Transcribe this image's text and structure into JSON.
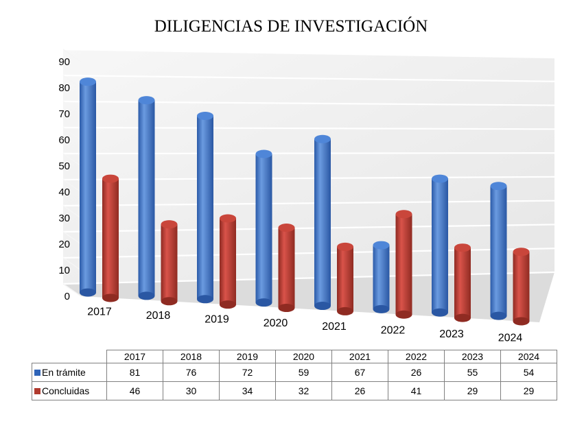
{
  "chart_data": {
    "type": "bar",
    "title": "DILIGENCIAS DE INVESTIGACIÓN",
    "categories": [
      "2017",
      "2018",
      "2019",
      "2020",
      "2021",
      "2022",
      "2023",
      "2024"
    ],
    "series": [
      {
        "name": "En trámite",
        "values": [
          81,
          76,
          72,
          59,
          67,
          26,
          55,
          54
        ],
        "color": "#4a7fd0"
      },
      {
        "name": "Concluidas",
        "values": [
          46,
          30,
          34,
          32,
          26,
          41,
          29,
          29
        ],
        "color": "#c0392b"
      }
    ],
    "ylim": [
      0,
      90
    ],
    "yticks": [
      "0",
      "10",
      "20",
      "30",
      "40",
      "50",
      "60",
      "70",
      "80",
      "90"
    ],
    "grid": true,
    "legend": "data-table",
    "style": "3d-cylinder"
  }
}
